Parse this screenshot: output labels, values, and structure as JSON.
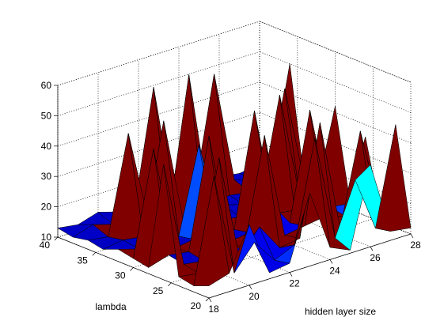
{
  "chart_data": {
    "type": "surface",
    "title": "",
    "xlabel": "hidden layer size",
    "ylabel": "lambda",
    "zlabel": "",
    "x": [
      18,
      19,
      20,
      21,
      22,
      23,
      24,
      25,
      26,
      27,
      28
    ],
    "y": [
      20,
      22,
      24,
      26,
      28,
      30,
      32,
      34,
      36,
      38,
      40
    ],
    "xlim": [
      18,
      28
    ],
    "ylim": [
      20,
      40
    ],
    "zlim": [
      10,
      60
    ],
    "xticks": [
      "18",
      "20",
      "22",
      "24",
      "26",
      "28"
    ],
    "yticks": [
      "20",
      "25",
      "30",
      "35",
      "40"
    ],
    "zticks": [
      "10",
      "20",
      "30",
      "40",
      "50",
      "60"
    ],
    "grid": true,
    "colormap": "jet",
    "colors": {
      "low": "#00008f",
      "mid": "#00ffff",
      "high": "#800000"
    },
    "z": [
      [
        14,
        16,
        30,
        12,
        13,
        34,
        14,
        11,
        37,
        13,
        12
      ],
      [
        12,
        46,
        12,
        20,
        12,
        15,
        48,
        13,
        30,
        12,
        44
      ],
      [
        13,
        12,
        48,
        13,
        21,
        12,
        13,
        49,
        12,
        42,
        13
      ],
      [
        48,
        13,
        12,
        14,
        12,
        47,
        12,
        13,
        14,
        12,
        36
      ],
      [
        12,
        14,
        13,
        49,
        12,
        13,
        21,
        12,
        47,
        13,
        12
      ],
      [
        13,
        47,
        12,
        13,
        14,
        12,
        49,
        13,
        12,
        14,
        42
      ],
      [
        14,
        12,
        13,
        12,
        40,
        13,
        12,
        14,
        48,
        12,
        13
      ],
      [
        12,
        13,
        12,
        48,
        12,
        13,
        14,
        12,
        13,
        46,
        12
      ],
      [
        13,
        12,
        44,
        13,
        12,
        57,
        12,
        13,
        12,
        14,
        50
      ],
      [
        12,
        14,
        12,
        13,
        53,
        12,
        13,
        51,
        14,
        12,
        13
      ],
      [
        13,
        12,
        14,
        12,
        13,
        12,
        14,
        12,
        13,
        12,
        13
      ]
    ]
  }
}
